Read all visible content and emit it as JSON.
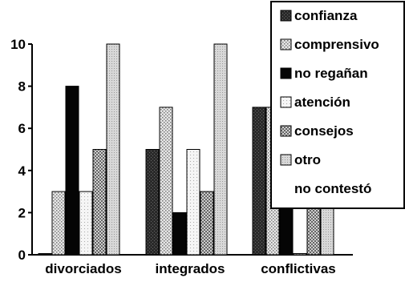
{
  "chart_data": {
    "type": "bar",
    "categories": [
      "divorciados",
      "integrados",
      "conflictivas"
    ],
    "series": [
      {
        "name": "confianza",
        "values": [
          0,
          5,
          7
        ],
        "pattern": "dark"
      },
      {
        "name": "comprensivo",
        "values": [
          3,
          7,
          7
        ],
        "pattern": "dots"
      },
      {
        "name": "no regañan",
        "values": [
          8,
          2,
          5
        ],
        "pattern": "black"
      },
      {
        "name": "atención",
        "values": [
          3,
          5,
          0
        ],
        "pattern": "light"
      },
      {
        "name": "consejos",
        "values": [
          5,
          3,
          8
        ],
        "pattern": "cross"
      },
      {
        "name": "otro",
        "values": [
          10,
          10,
          7
        ],
        "pattern": "grey"
      }
    ],
    "legend_extra": "no contestó",
    "ylim": [
      0,
      10
    ],
    "yticks": [
      0,
      2,
      4,
      6,
      8,
      10
    ],
    "legend_position": "top-right",
    "grid": false
  }
}
